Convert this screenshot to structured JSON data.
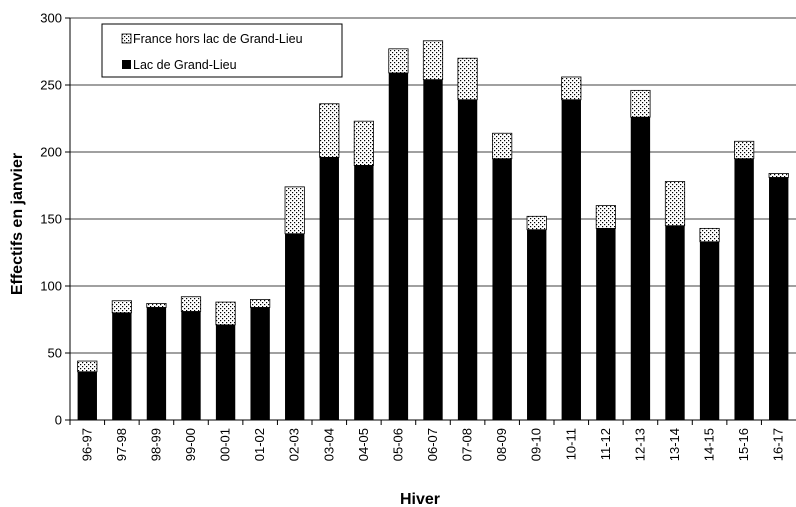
{
  "chart_data": {
    "type": "bar",
    "stacked": true,
    "xlabel": "Hiver",
    "ylabel": "Effectifs en janvier",
    "ylim": [
      0,
      300
    ],
    "yticks": [
      0,
      50,
      100,
      150,
      200,
      250,
      300
    ],
    "grid": true,
    "legend_position": "top-left",
    "categories": [
      "96-97",
      "97-98",
      "98-99",
      "99-00",
      "00-01",
      "01-02",
      "02-03",
      "03-04",
      "04-05",
      "05-06",
      "06-07",
      "07-08",
      "08-09",
      "09-10",
      "10-11",
      "11-12",
      "12-13",
      "13-14",
      "14-15",
      "15-16",
      "16-17"
    ],
    "series": [
      {
        "name": "Lac de Grand-Lieu",
        "pattern": "solid",
        "color": "#000000",
        "values": [
          36,
          80,
          84,
          81,
          71,
          84,
          139,
          196,
          190,
          259,
          254,
          239,
          195,
          142,
          239,
          143,
          226,
          145,
          133,
          195,
          181
        ]
      },
      {
        "name": "France hors lac de Grand-Lieu",
        "pattern": "dotted",
        "color": "#ffffff",
        "values": [
          8,
          9,
          3,
          11,
          17,
          6,
          35,
          40,
          33,
          18,
          29,
          31,
          19,
          10,
          17,
          17,
          20,
          33,
          10,
          13,
          3
        ]
      }
    ]
  }
}
